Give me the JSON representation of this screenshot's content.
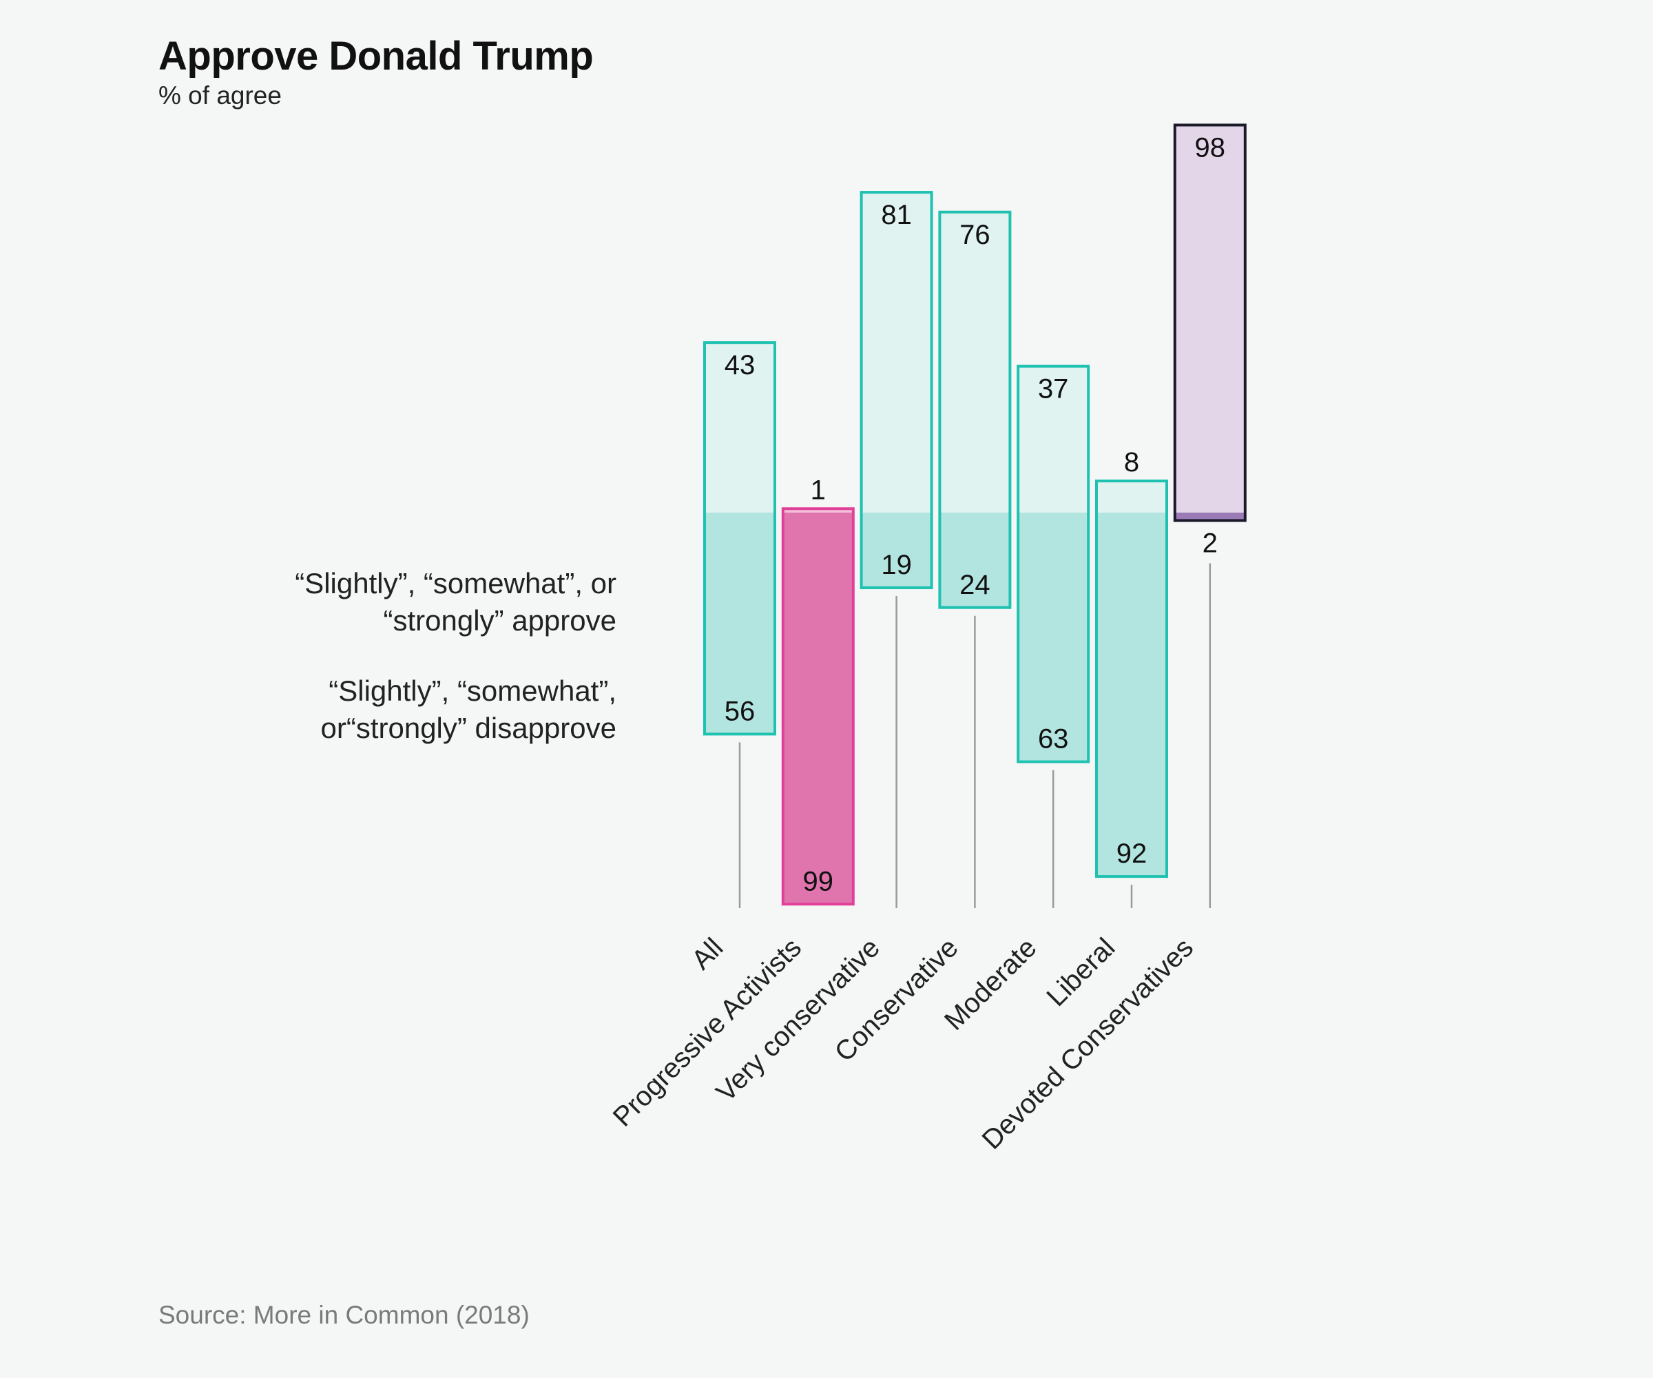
{
  "chart_data": {
    "type": "bar",
    "subtype": "diverging-stacked",
    "title": "Approve Donald Trump",
    "subtitle": "% of agree",
    "source": "Source: More in Common (2018)",
    "legend": {
      "approve": [
        "“Slightly”, “somewhat”, or",
        "“strongly” approve"
      ],
      "disapprove": [
        "“Slightly”, “somewhat”,",
        "or“strongly” disapprove"
      ]
    },
    "categories": [
      "All",
      "Progressive Activists",
      "Very conservative",
      "Conservative",
      "Moderate",
      "Liberal",
      "Devoted Conservatives"
    ],
    "series": [
      {
        "name": "approve",
        "values": [
          43,
          1,
          81,
          76,
          37,
          8,
          98
        ]
      },
      {
        "name": "disapprove",
        "values": [
          56,
          99,
          19,
          24,
          63,
          92,
          2
        ]
      }
    ],
    "ylim": [
      -100,
      100
    ],
    "colors": {
      "default": {
        "light": "#e0f3f1",
        "dark": "#b3e5e0",
        "stroke": "#1fc1b0"
      },
      "Progressive Activists": {
        "light": "#f2bfd9",
        "dark": "#e075ae",
        "stroke": "#e0409a"
      },
      "Devoted Conservatives": {
        "light": "#e3d6e9",
        "dark": "#9b7bb6",
        "stroke": "#1a1a2a"
      }
    }
  }
}
